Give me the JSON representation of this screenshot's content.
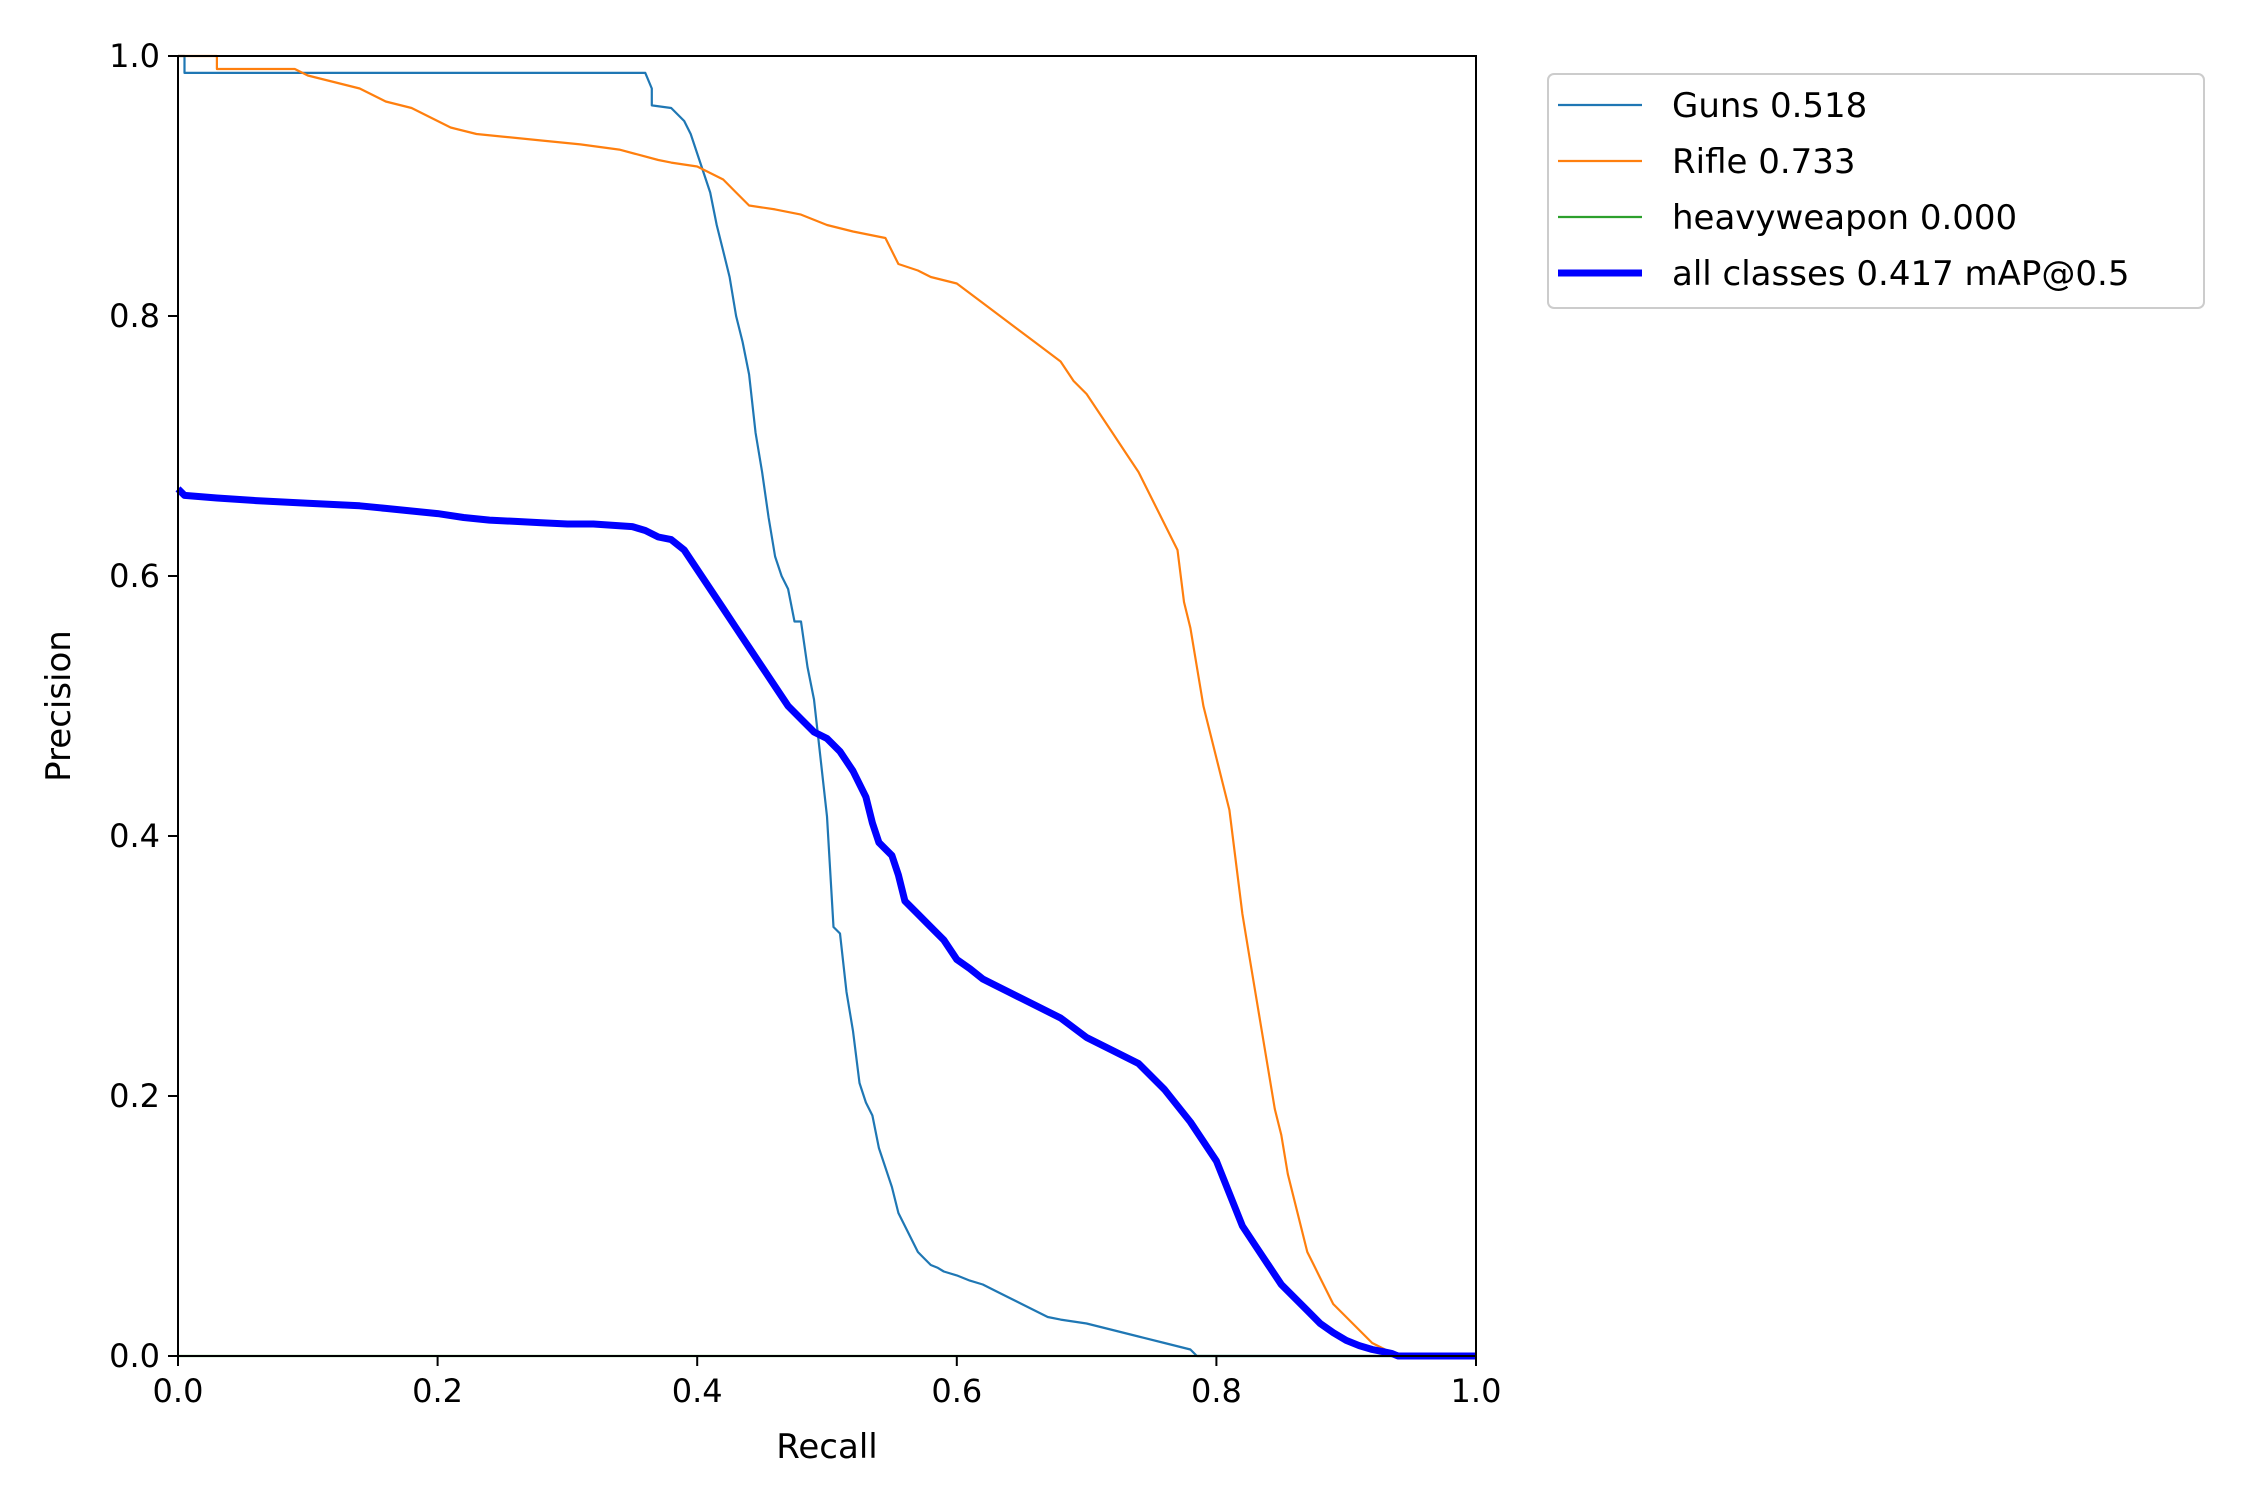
{
  "chart_data": {
    "type": "line",
    "xlabel": "Recall",
    "ylabel": "Precision",
    "xlim": [
      0,
      1
    ],
    "ylim": [
      0,
      1
    ],
    "xticks": [
      "0.0",
      "0.2",
      "0.4",
      "0.6",
      "0.8",
      "1.0"
    ],
    "yticks": [
      "0.0",
      "0.2",
      "0.4",
      "0.6",
      "0.8",
      "1.0"
    ],
    "grid": false,
    "legend_position": "outside-top-right",
    "series": [
      {
        "name": "Guns 0.518",
        "color": "#1f77b4",
        "width": "thin",
        "x": [
          0,
          0.005,
          0.005,
          0.36,
          0.365,
          0.365,
          0.38,
          0.385,
          0.39,
          0.395,
          0.4,
          0.405,
          0.41,
          0.415,
          0.42,
          0.425,
          0.43,
          0.435,
          0.44,
          0.445,
          0.45,
          0.455,
          0.46,
          0.465,
          0.47,
          0.475,
          0.48,
          0.485,
          0.49,
          0.495,
          0.5,
          0.505,
          0.51,
          0.515,
          0.52,
          0.525,
          0.53,
          0.535,
          0.54,
          0.545,
          0.55,
          0.555,
          0.56,
          0.565,
          0.57,
          0.575,
          0.58,
          0.585,
          0.59,
          0.6,
          0.61,
          0.62,
          0.63,
          0.64,
          0.65,
          0.66,
          0.67,
          0.68,
          0.7,
          0.72,
          0.74,
          0.76,
          0.78,
          0.785,
          0.79,
          0.8,
          1.0
        ],
        "y": [
          1.0,
          1.0,
          0.987,
          0.987,
          0.975,
          0.962,
          0.96,
          0.955,
          0.95,
          0.94,
          0.925,
          0.91,
          0.895,
          0.87,
          0.85,
          0.83,
          0.8,
          0.78,
          0.755,
          0.71,
          0.68,
          0.645,
          0.615,
          0.6,
          0.59,
          0.565,
          0.565,
          0.53,
          0.505,
          0.46,
          0.415,
          0.33,
          0.325,
          0.28,
          0.25,
          0.21,
          0.195,
          0.185,
          0.16,
          0.145,
          0.13,
          0.11,
          0.1,
          0.09,
          0.08,
          0.075,
          0.07,
          0.068,
          0.065,
          0.062,
          0.058,
          0.055,
          0.05,
          0.045,
          0.04,
          0.035,
          0.03,
          0.028,
          0.025,
          0.02,
          0.015,
          0.01,
          0.005,
          0.0,
          0.0,
          0.0,
          0.0
        ]
      },
      {
        "name": "Rifle 0.733",
        "color": "#ff7f0e",
        "width": "thin",
        "x": [
          0,
          0.03,
          0.03,
          0.09,
          0.1,
          0.12,
          0.14,
          0.16,
          0.18,
          0.2,
          0.21,
          0.23,
          0.25,
          0.28,
          0.31,
          0.34,
          0.37,
          0.38,
          0.4,
          0.42,
          0.43,
          0.44,
          0.46,
          0.48,
          0.5,
          0.52,
          0.545,
          0.555,
          0.57,
          0.58,
          0.6,
          0.62,
          0.64,
          0.66,
          0.68,
          0.69,
          0.7,
          0.71,
          0.72,
          0.73,
          0.74,
          0.75,
          0.76,
          0.77,
          0.775,
          0.78,
          0.785,
          0.79,
          0.8,
          0.805,
          0.81,
          0.815,
          0.82,
          0.825,
          0.83,
          0.835,
          0.84,
          0.845,
          0.85,
          0.855,
          0.86,
          0.865,
          0.87,
          0.875,
          0.88,
          0.885,
          0.89,
          0.895,
          0.9,
          0.91,
          0.92,
          0.93,
          0.935,
          0.94,
          1.0
        ],
        "y": [
          1.0,
          1.0,
          0.99,
          0.99,
          0.985,
          0.98,
          0.975,
          0.965,
          0.96,
          0.95,
          0.945,
          0.94,
          0.938,
          0.935,
          0.932,
          0.928,
          0.92,
          0.918,
          0.915,
          0.905,
          0.895,
          0.885,
          0.882,
          0.878,
          0.87,
          0.865,
          0.86,
          0.84,
          0.835,
          0.83,
          0.825,
          0.81,
          0.795,
          0.78,
          0.765,
          0.75,
          0.74,
          0.725,
          0.71,
          0.695,
          0.68,
          0.66,
          0.64,
          0.62,
          0.58,
          0.56,
          0.53,
          0.5,
          0.46,
          0.44,
          0.42,
          0.38,
          0.34,
          0.31,
          0.28,
          0.25,
          0.22,
          0.19,
          0.17,
          0.14,
          0.12,
          0.1,
          0.08,
          0.07,
          0.06,
          0.05,
          0.04,
          0.035,
          0.03,
          0.02,
          0.01,
          0.005,
          0.0,
          0.0,
          0.0
        ]
      },
      {
        "name": "heavyweapon 0.000",
        "color": "#2ca02c",
        "width": "thin",
        "x": [
          0,
          1
        ],
        "y": [
          0,
          0
        ]
      },
      {
        "name": "all classes 0.417 mAP@0.5",
        "color": "#0000ff",
        "width": "thick",
        "x": [
          0,
          0.005,
          0.03,
          0.06,
          0.1,
          0.14,
          0.16,
          0.18,
          0.2,
          0.22,
          0.24,
          0.26,
          0.28,
          0.3,
          0.32,
          0.35,
          0.36,
          0.37,
          0.38,
          0.39,
          0.4,
          0.41,
          0.42,
          0.43,
          0.44,
          0.45,
          0.46,
          0.47,
          0.48,
          0.49,
          0.5,
          0.51,
          0.52,
          0.53,
          0.535,
          0.54,
          0.545,
          0.55,
          0.555,
          0.56,
          0.57,
          0.58,
          0.59,
          0.6,
          0.61,
          0.62,
          0.63,
          0.64,
          0.65,
          0.66,
          0.68,
          0.7,
          0.72,
          0.74,
          0.76,
          0.78,
          0.79,
          0.8,
          0.81,
          0.82,
          0.83,
          0.84,
          0.85,
          0.86,
          0.87,
          0.88,
          0.89,
          0.9,
          0.91,
          0.92,
          0.93,
          0.935,
          0.94,
          1.0
        ],
        "y": [
          0.667,
          0.662,
          0.66,
          0.658,
          0.656,
          0.654,
          0.652,
          0.65,
          0.648,
          0.645,
          0.643,
          0.642,
          0.641,
          0.64,
          0.64,
          0.638,
          0.635,
          0.63,
          0.628,
          0.62,
          0.605,
          0.59,
          0.575,
          0.56,
          0.545,
          0.53,
          0.515,
          0.5,
          0.49,
          0.48,
          0.475,
          0.465,
          0.45,
          0.43,
          0.41,
          0.395,
          0.39,
          0.385,
          0.37,
          0.35,
          0.34,
          0.33,
          0.32,
          0.305,
          0.298,
          0.29,
          0.285,
          0.28,
          0.275,
          0.27,
          0.26,
          0.245,
          0.235,
          0.225,
          0.205,
          0.18,
          0.165,
          0.15,
          0.125,
          0.1,
          0.085,
          0.07,
          0.055,
          0.045,
          0.035,
          0.025,
          0.018,
          0.012,
          0.008,
          0.005,
          0.003,
          0.002,
          0.0,
          0.0
        ]
      }
    ]
  }
}
